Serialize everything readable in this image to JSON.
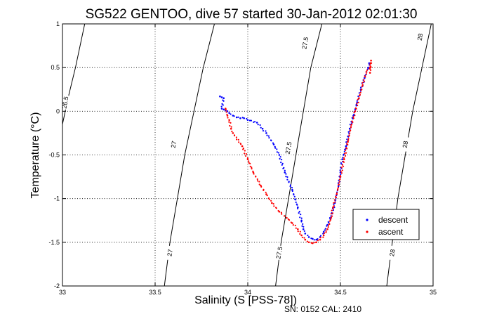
{
  "chart_data": {
    "type": "scatter",
    "title": "SG522 GENTOO, dive 57 started 30-Jan-2012 02:01:30",
    "xlabel": "Salinity (S [PSS-78])",
    "ylabel": "Temperature (°C)",
    "xlim": [
      33,
      35
    ],
    "ylim": [
      -2,
      1
    ],
    "x_ticks": [
      33,
      33.5,
      34,
      34.5,
      35
    ],
    "x_tick_labels": [
      "33",
      "33.5",
      "34",
      "34.5",
      "35"
    ],
    "y_ticks": [
      -2,
      -1.5,
      -1,
      -0.5,
      0,
      0.5,
      1
    ],
    "y_tick_labels": [
      "-2",
      "-1.5",
      "-1",
      "-0.5",
      "0",
      "0.5",
      "1"
    ],
    "grid": true,
    "grid_style": "dotted",
    "legend_position": "lower-right",
    "footer": "SN: 0152  CAL: 2410",
    "colors": {
      "descent": "#0000ff",
      "ascent": "#ff0000",
      "contour": "#000000"
    },
    "density_contours": [
      {
        "label": "26.5",
        "points": [
          [
            33.0,
            -0.15
          ],
          [
            33.03,
            0.15
          ],
          [
            33.07,
            0.5
          ],
          [
            33.12,
            1.0
          ]
        ],
        "label_at": [
          33.015,
          0.1
        ]
      },
      {
        "label": "27",
        "points": [
          [
            33.55,
            -2.0
          ],
          [
            33.58,
            -1.5
          ],
          [
            33.62,
            -1.0
          ],
          [
            33.66,
            -0.5
          ],
          [
            33.71,
            0.0
          ],
          [
            33.76,
            0.5
          ],
          [
            33.82,
            1.0
          ]
        ],
        "label_at": [
          33.6,
          -0.38
        ]
      },
      {
        "label": "27.5",
        "points": [
          [
            34.15,
            -2.0
          ],
          [
            34.18,
            -1.5
          ],
          [
            34.22,
            -1.0
          ],
          [
            34.26,
            -0.5
          ],
          [
            34.3,
            0.0
          ],
          [
            34.34,
            0.5
          ],
          [
            34.4,
            1.0
          ]
        ],
        "label_at": [
          34.22,
          -0.42
        ]
      },
      {
        "label": "28",
        "points": [
          [
            34.75,
            -2.0
          ],
          [
            34.78,
            -1.5
          ],
          [
            34.81,
            -1.0
          ],
          [
            34.85,
            -0.5
          ],
          [
            34.89,
            0.0
          ],
          [
            34.94,
            0.5
          ],
          [
            34.99,
            1.0
          ]
        ],
        "label_at": [
          34.85,
          -0.38
        ]
      }
    ],
    "contour_extra_labels": [
      {
        "label": "27",
        "at": [
          33.58,
          -1.62
        ]
      },
      {
        "label": "27.5",
        "at": [
          34.17,
          -1.62
        ]
      },
      {
        "label": "28",
        "at": [
          34.78,
          -1.62
        ]
      },
      {
        "label": "27.5",
        "at": [
          34.31,
          0.78
        ]
      },
      {
        "label": "28",
        "at": [
          34.93,
          0.85
        ]
      }
    ],
    "series": [
      {
        "name": "descent",
        "points": [
          [
            33.85,
            0.17
          ],
          [
            33.86,
            0.16
          ],
          [
            33.87,
            0.15
          ],
          [
            33.86,
            0.03
          ],
          [
            33.87,
            0.02
          ],
          [
            33.88,
            0.01
          ],
          [
            33.89,
            0.0
          ],
          [
            33.9,
            -0.02
          ],
          [
            33.92,
            -0.05
          ],
          [
            33.94,
            -0.07
          ],
          [
            33.96,
            -0.08
          ],
          [
            33.98,
            -0.08
          ],
          [
            34.0,
            -0.1
          ],
          [
            34.05,
            -0.13
          ],
          [
            34.08,
            -0.2
          ],
          [
            34.1,
            -0.25
          ],
          [
            34.14,
            -0.38
          ],
          [
            34.17,
            -0.5
          ],
          [
            34.2,
            -0.7
          ],
          [
            34.24,
            -0.9
          ],
          [
            34.27,
            -1.1
          ],
          [
            34.29,
            -1.25
          ],
          [
            34.3,
            -1.35
          ],
          [
            34.31,
            -1.4
          ],
          [
            34.33,
            -1.44
          ],
          [
            34.35,
            -1.46
          ],
          [
            34.37,
            -1.47
          ],
          [
            34.39,
            -1.44
          ],
          [
            34.41,
            -1.38
          ],
          [
            34.43,
            -1.3
          ],
          [
            34.45,
            -1.2
          ],
          [
            34.47,
            -1.05
          ],
          [
            34.49,
            -0.85
          ],
          [
            34.5,
            -0.7
          ],
          [
            34.51,
            -0.55
          ],
          [
            34.53,
            -0.4
          ],
          [
            34.55,
            -0.2
          ],
          [
            34.57,
            -0.05
          ],
          [
            34.59,
            0.1
          ],
          [
            34.61,
            0.25
          ],
          [
            34.63,
            0.38
          ],
          [
            34.64,
            0.45
          ],
          [
            34.65,
            0.5
          ],
          [
            34.655,
            0.55
          ]
        ]
      },
      {
        "name": "ascent",
        "points": [
          [
            33.88,
            0.03
          ],
          [
            33.89,
            -0.05
          ],
          [
            33.9,
            -0.1
          ],
          [
            33.91,
            -0.2
          ],
          [
            33.92,
            -0.25
          ],
          [
            33.97,
            -0.4
          ],
          [
            34.0,
            -0.55
          ],
          [
            34.03,
            -0.7
          ],
          [
            34.07,
            -0.85
          ],
          [
            34.1,
            -0.95
          ],
          [
            34.13,
            -1.05
          ],
          [
            34.17,
            -1.15
          ],
          [
            34.21,
            -1.22
          ],
          [
            34.24,
            -1.28
          ],
          [
            34.27,
            -1.35
          ],
          [
            34.29,
            -1.42
          ],
          [
            34.31,
            -1.47
          ],
          [
            34.33,
            -1.5
          ],
          [
            34.35,
            -1.51
          ],
          [
            34.37,
            -1.5
          ],
          [
            34.39,
            -1.47
          ],
          [
            34.41,
            -1.42
          ],
          [
            34.43,
            -1.35
          ],
          [
            34.45,
            -1.22
          ],
          [
            34.46,
            -1.1
          ],
          [
            34.48,
            -0.95
          ],
          [
            34.5,
            -0.75
          ],
          [
            34.52,
            -0.55
          ],
          [
            34.54,
            -0.35
          ],
          [
            34.56,
            -0.15
          ],
          [
            34.58,
            0.0
          ],
          [
            34.6,
            0.15
          ],
          [
            34.62,
            0.3
          ],
          [
            34.64,
            0.45
          ],
          [
            34.66,
            0.5
          ],
          [
            34.665,
            0.58
          ],
          [
            34.66,
            0.44
          ]
        ]
      }
    ]
  }
}
